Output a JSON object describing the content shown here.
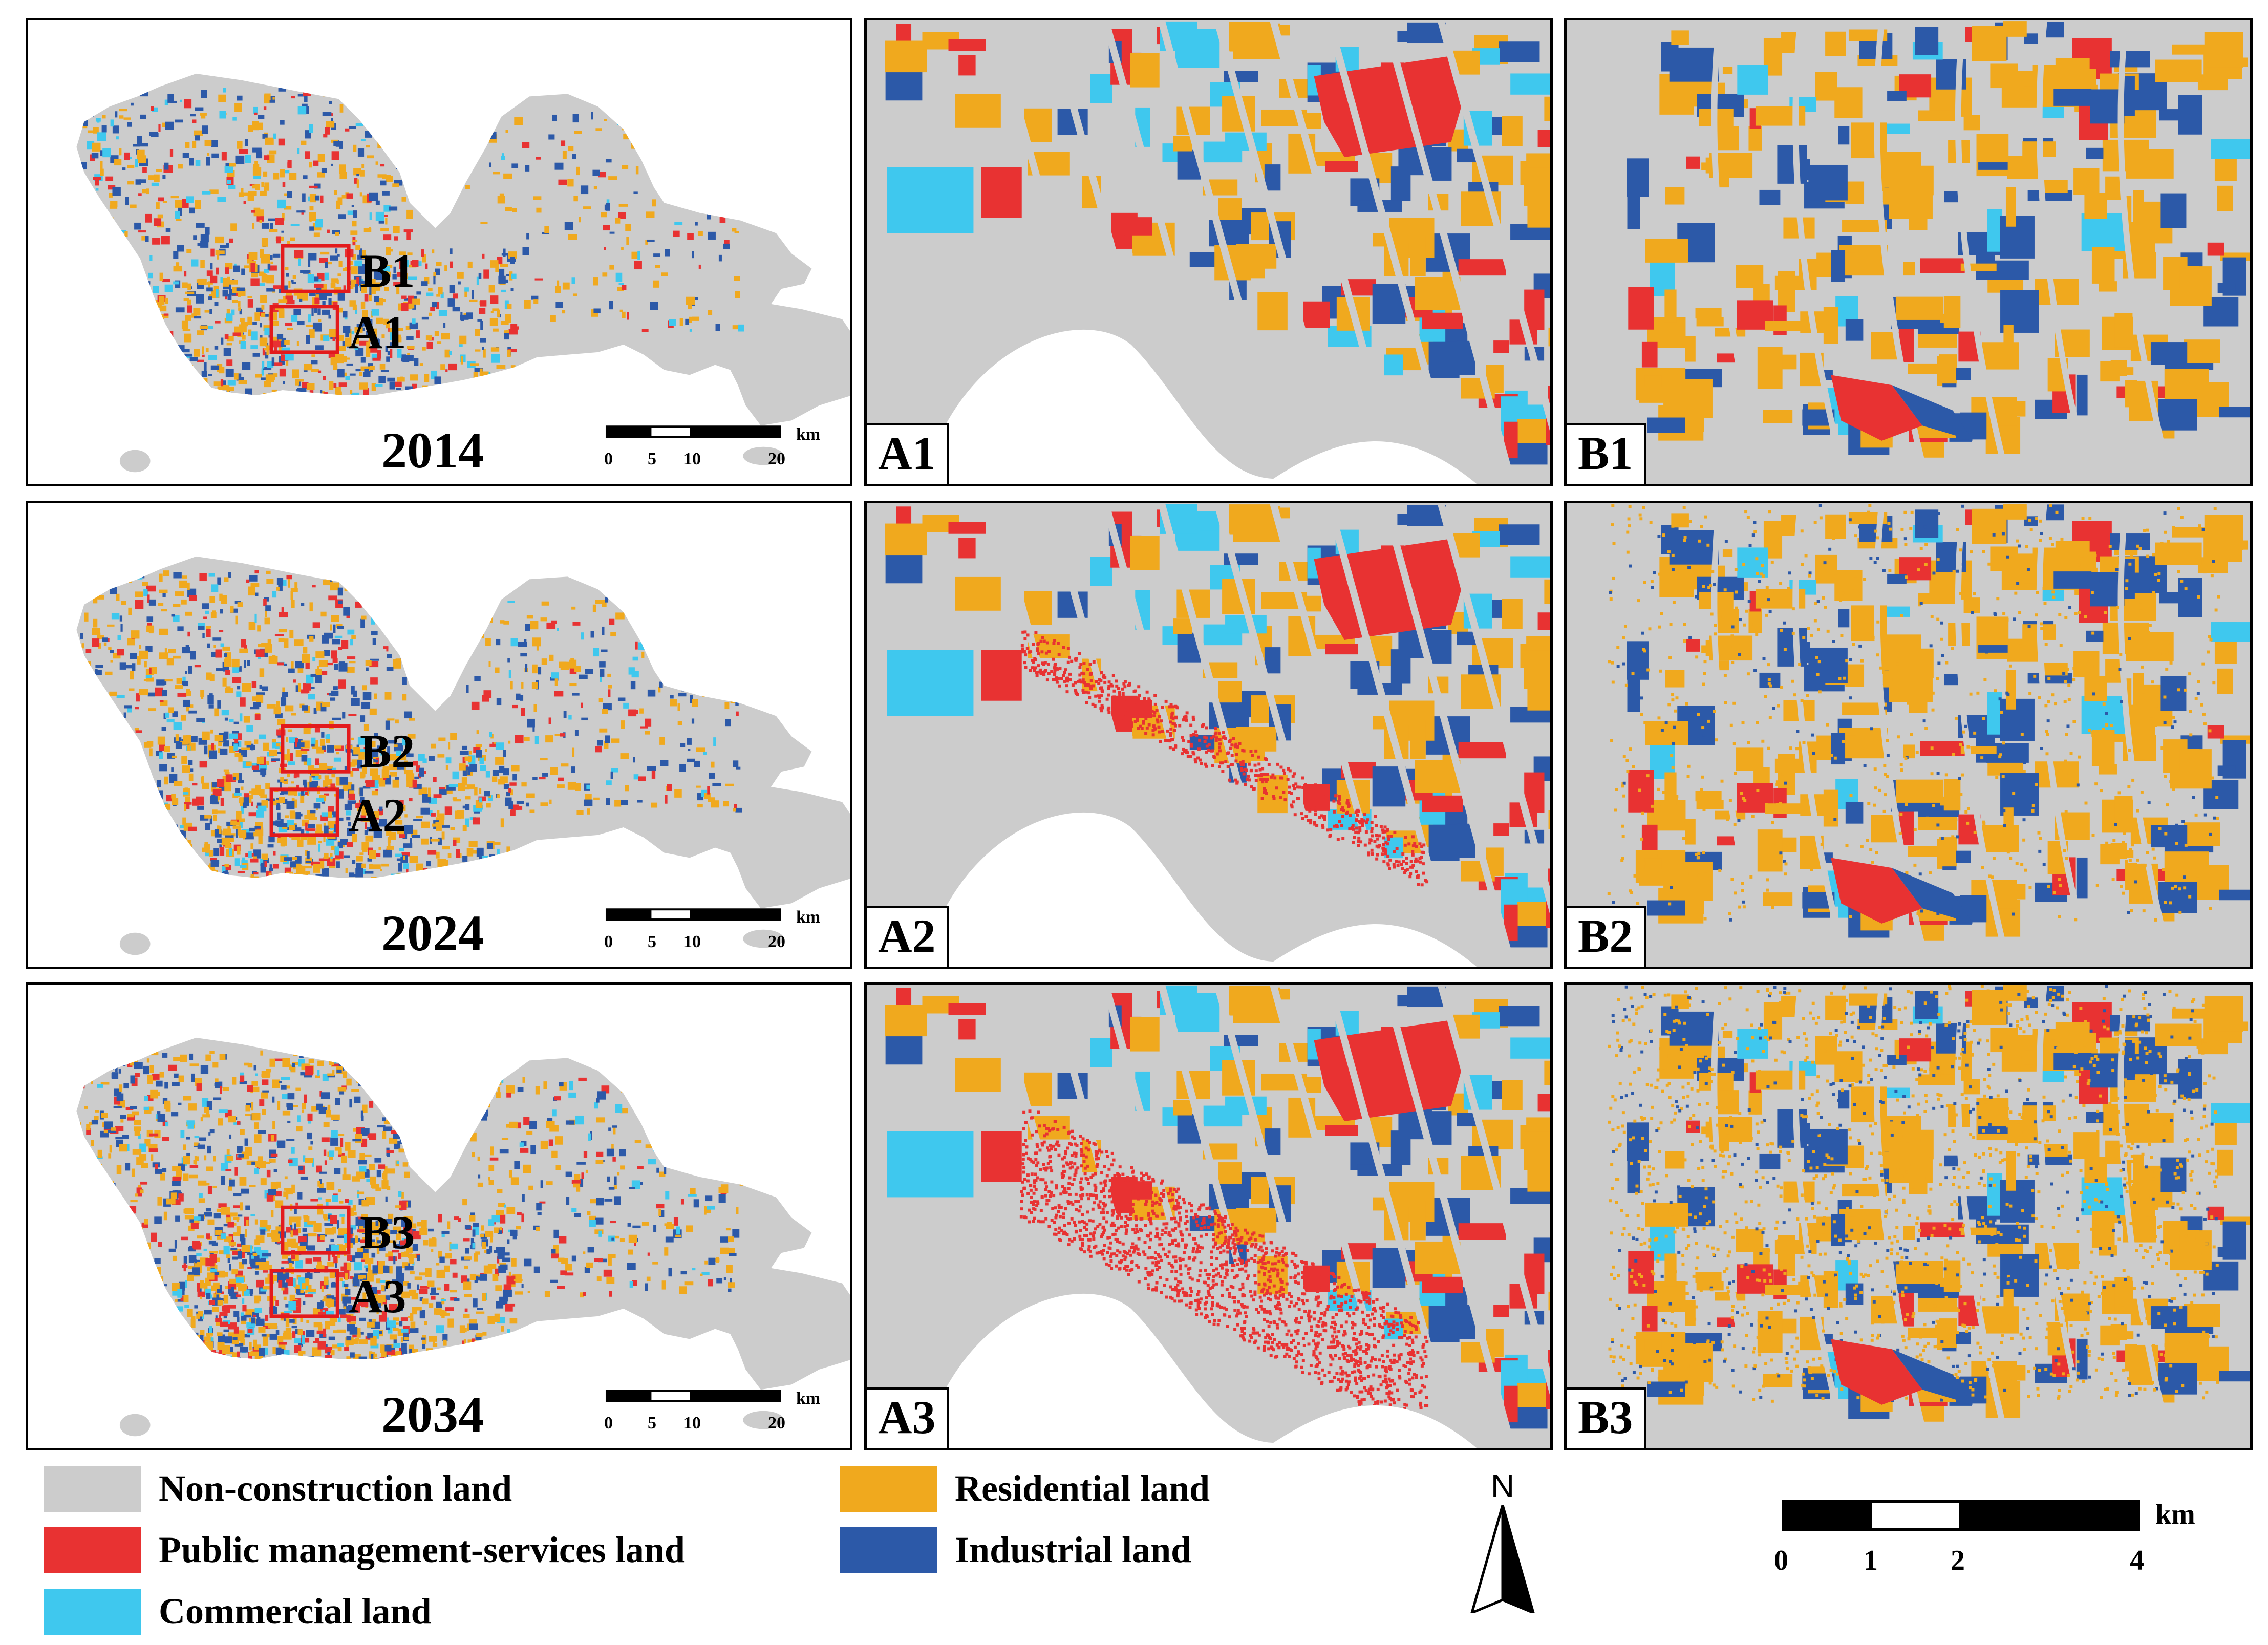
{
  "colors": {
    "non_construction": "#cccccc",
    "public": "#e83232",
    "commercial": "#3fc8ee",
    "residential": "#f0a91e",
    "industrial": "#2c59a8"
  },
  "overview_panels": [
    {
      "year": "2014",
      "box_a": "A1",
      "box_b": "B1"
    },
    {
      "year": "2024",
      "box_a": "A2",
      "box_b": "B2"
    },
    {
      "year": "2034",
      "box_a": "A3",
      "box_b": "B3"
    }
  ],
  "overview_scalebar": {
    "unit": "km",
    "ticks": [
      "0",
      "5",
      "10",
      "20"
    ]
  },
  "zoom_panels": {
    "a": [
      "A1",
      "A2",
      "A3"
    ],
    "b": [
      "B1",
      "B2",
      "B3"
    ]
  },
  "legend": [
    {
      "label": "Non-construction land",
      "color_key": "non_construction"
    },
    {
      "label": "Public management-services land",
      "color_key": "public"
    },
    {
      "label": "Commercial land",
      "color_key": "commercial"
    },
    {
      "label": "Residential land",
      "color_key": "residential"
    },
    {
      "label": "Industrial land",
      "color_key": "industrial"
    }
  ],
  "north_arrow": {
    "label": "N"
  },
  "bottom_scalebar": {
    "unit": "km",
    "ticks": [
      "0",
      "1",
      "2",
      "4"
    ]
  }
}
